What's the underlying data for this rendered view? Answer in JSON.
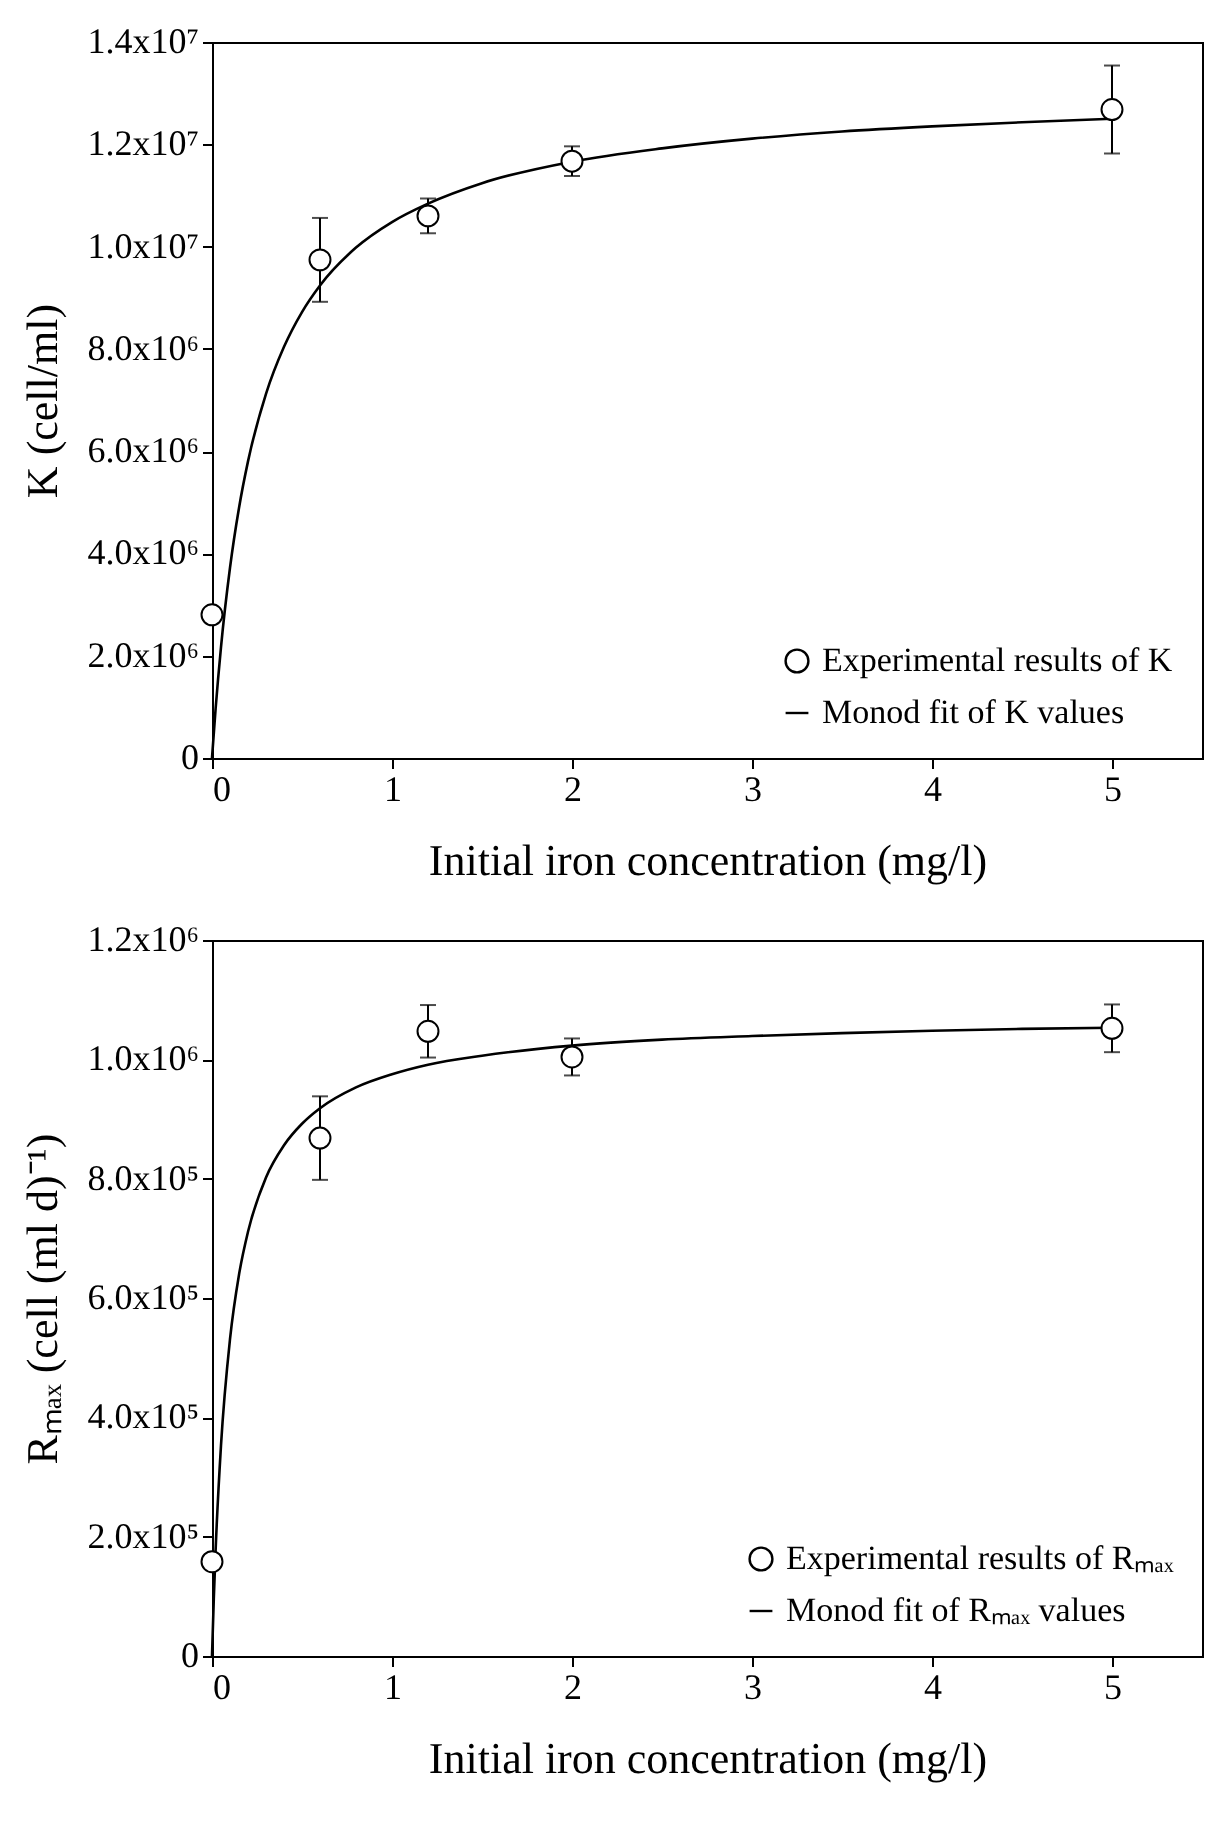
{
  "chart_data": [
    {
      "type": "scatter",
      "xlabel": "Initial iron concentration (mg/l)",
      "ylabel": "K (cell/ml)",
      "xlim": [
        0,
        5.5
      ],
      "xticks": [
        0,
        1,
        2,
        3,
        4,
        5
      ],
      "ylim": [
        0,
        14000000
      ],
      "yticks": [
        0,
        {
          "value": 2000000,
          "label": "2.0x10⁶"
        },
        {
          "value": 4000000,
          "label": "4.0x10⁶"
        },
        {
          "value": 6000000,
          "label": "6.0x10⁶"
        },
        {
          "value": 8000000,
          "label": "8.0x10⁶"
        },
        {
          "value": 10000000,
          "label": "1.0x10⁷"
        },
        {
          "value": 12000000,
          "label": "1.2x10⁷"
        },
        {
          "value": 14000000,
          "label": "1.4x10⁷"
        }
      ],
      "legend": "bottom right",
      "series": [
        {
          "name": "Experimental results of K",
          "color": "#000000",
          "marker": "circle",
          "x": [
            0,
            0.6,
            1.2,
            2,
            5
          ],
          "values": [
            2800000,
            9740000,
            10600000,
            11670000,
            12680000
          ],
          "errors": [
            null,
            820000,
            340000,
            290000,
            860000
          ]
        },
        {
          "name": "Monod fit of K values",
          "type": "line",
          "color": "#000000",
          "x": [
            0,
            0.02,
            0.05,
            0.1,
            0.15,
            0.2,
            0.3,
            0.4,
            0.5,
            0.6,
            0.8,
            1,
            1.2,
            1.5,
            2,
            2.5,
            3,
            3.5,
            4,
            4.5,
            5
          ],
          "values": [
            0,
            960000,
            2170000,
            3720000,
            4890000,
            5800000,
            7120000,
            8040000,
            8720000,
            9240000,
            9980000,
            10480000,
            10840000,
            11240000,
            11660000,
            11920000,
            12110000,
            12250000,
            12350000,
            12430000,
            12500000
          ]
        }
      ]
    },
    {
      "type": "scatter",
      "xlabel": "Initial iron concentration (mg/l)",
      "ylabel": "Rₘₐₓ (cell (ml d)⁻¹)",
      "xlim": [
        0,
        5.5
      ],
      "xticks": [
        0,
        1,
        2,
        3,
        4,
        5
      ],
      "ylim": [
        0,
        1200000
      ],
      "yticks": [
        0,
        {
          "value": 200000,
          "label": "2.0x10⁵"
        },
        {
          "value": 400000,
          "label": "4.0x10⁵"
        },
        {
          "value": 600000,
          "label": "6.0x10⁵"
        },
        {
          "value": 800000,
          "label": "8.0x10⁵"
        },
        {
          "value": 1000000,
          "label": "1.0x10⁶"
        },
        {
          "value": 1200000,
          "label": "1.2x10⁶"
        }
      ],
      "legend": "bottom right",
      "series": [
        {
          "name": "Experimental results of Rₘₐₓ",
          "color": "#000000",
          "marker": "circle",
          "x": [
            0,
            0.6,
            1.2,
            2,
            5
          ],
          "values": [
            158000,
            868000,
            1047000,
            1004000,
            1052000
          ],
          "errors": [
            null,
            70000,
            44000,
            31000,
            40000
          ]
        },
        {
          "name": "Monod fit of Rₘₐₓ values",
          "type": "line",
          "color": "#000000",
          "x": [
            0,
            0.01,
            0.02,
            0.05,
            0.1,
            0.15,
            0.2,
            0.3,
            0.4,
            0.5,
            0.6,
            0.8,
            1,
            1.2,
            1.5,
            2,
            2.5,
            3,
            3.5,
            4,
            4.5,
            5
          ],
          "values": [
            0,
            96000,
            177000,
            353000,
            531000,
            639000,
            711000,
            802000,
            856000,
            892000,
            918000,
            953000,
            975000,
            991000,
            1006000,
            1023000,
            1033000,
            1039000,
            1044000,
            1048000,
            1051000,
            1053000
          ]
        }
      ]
    }
  ]
}
